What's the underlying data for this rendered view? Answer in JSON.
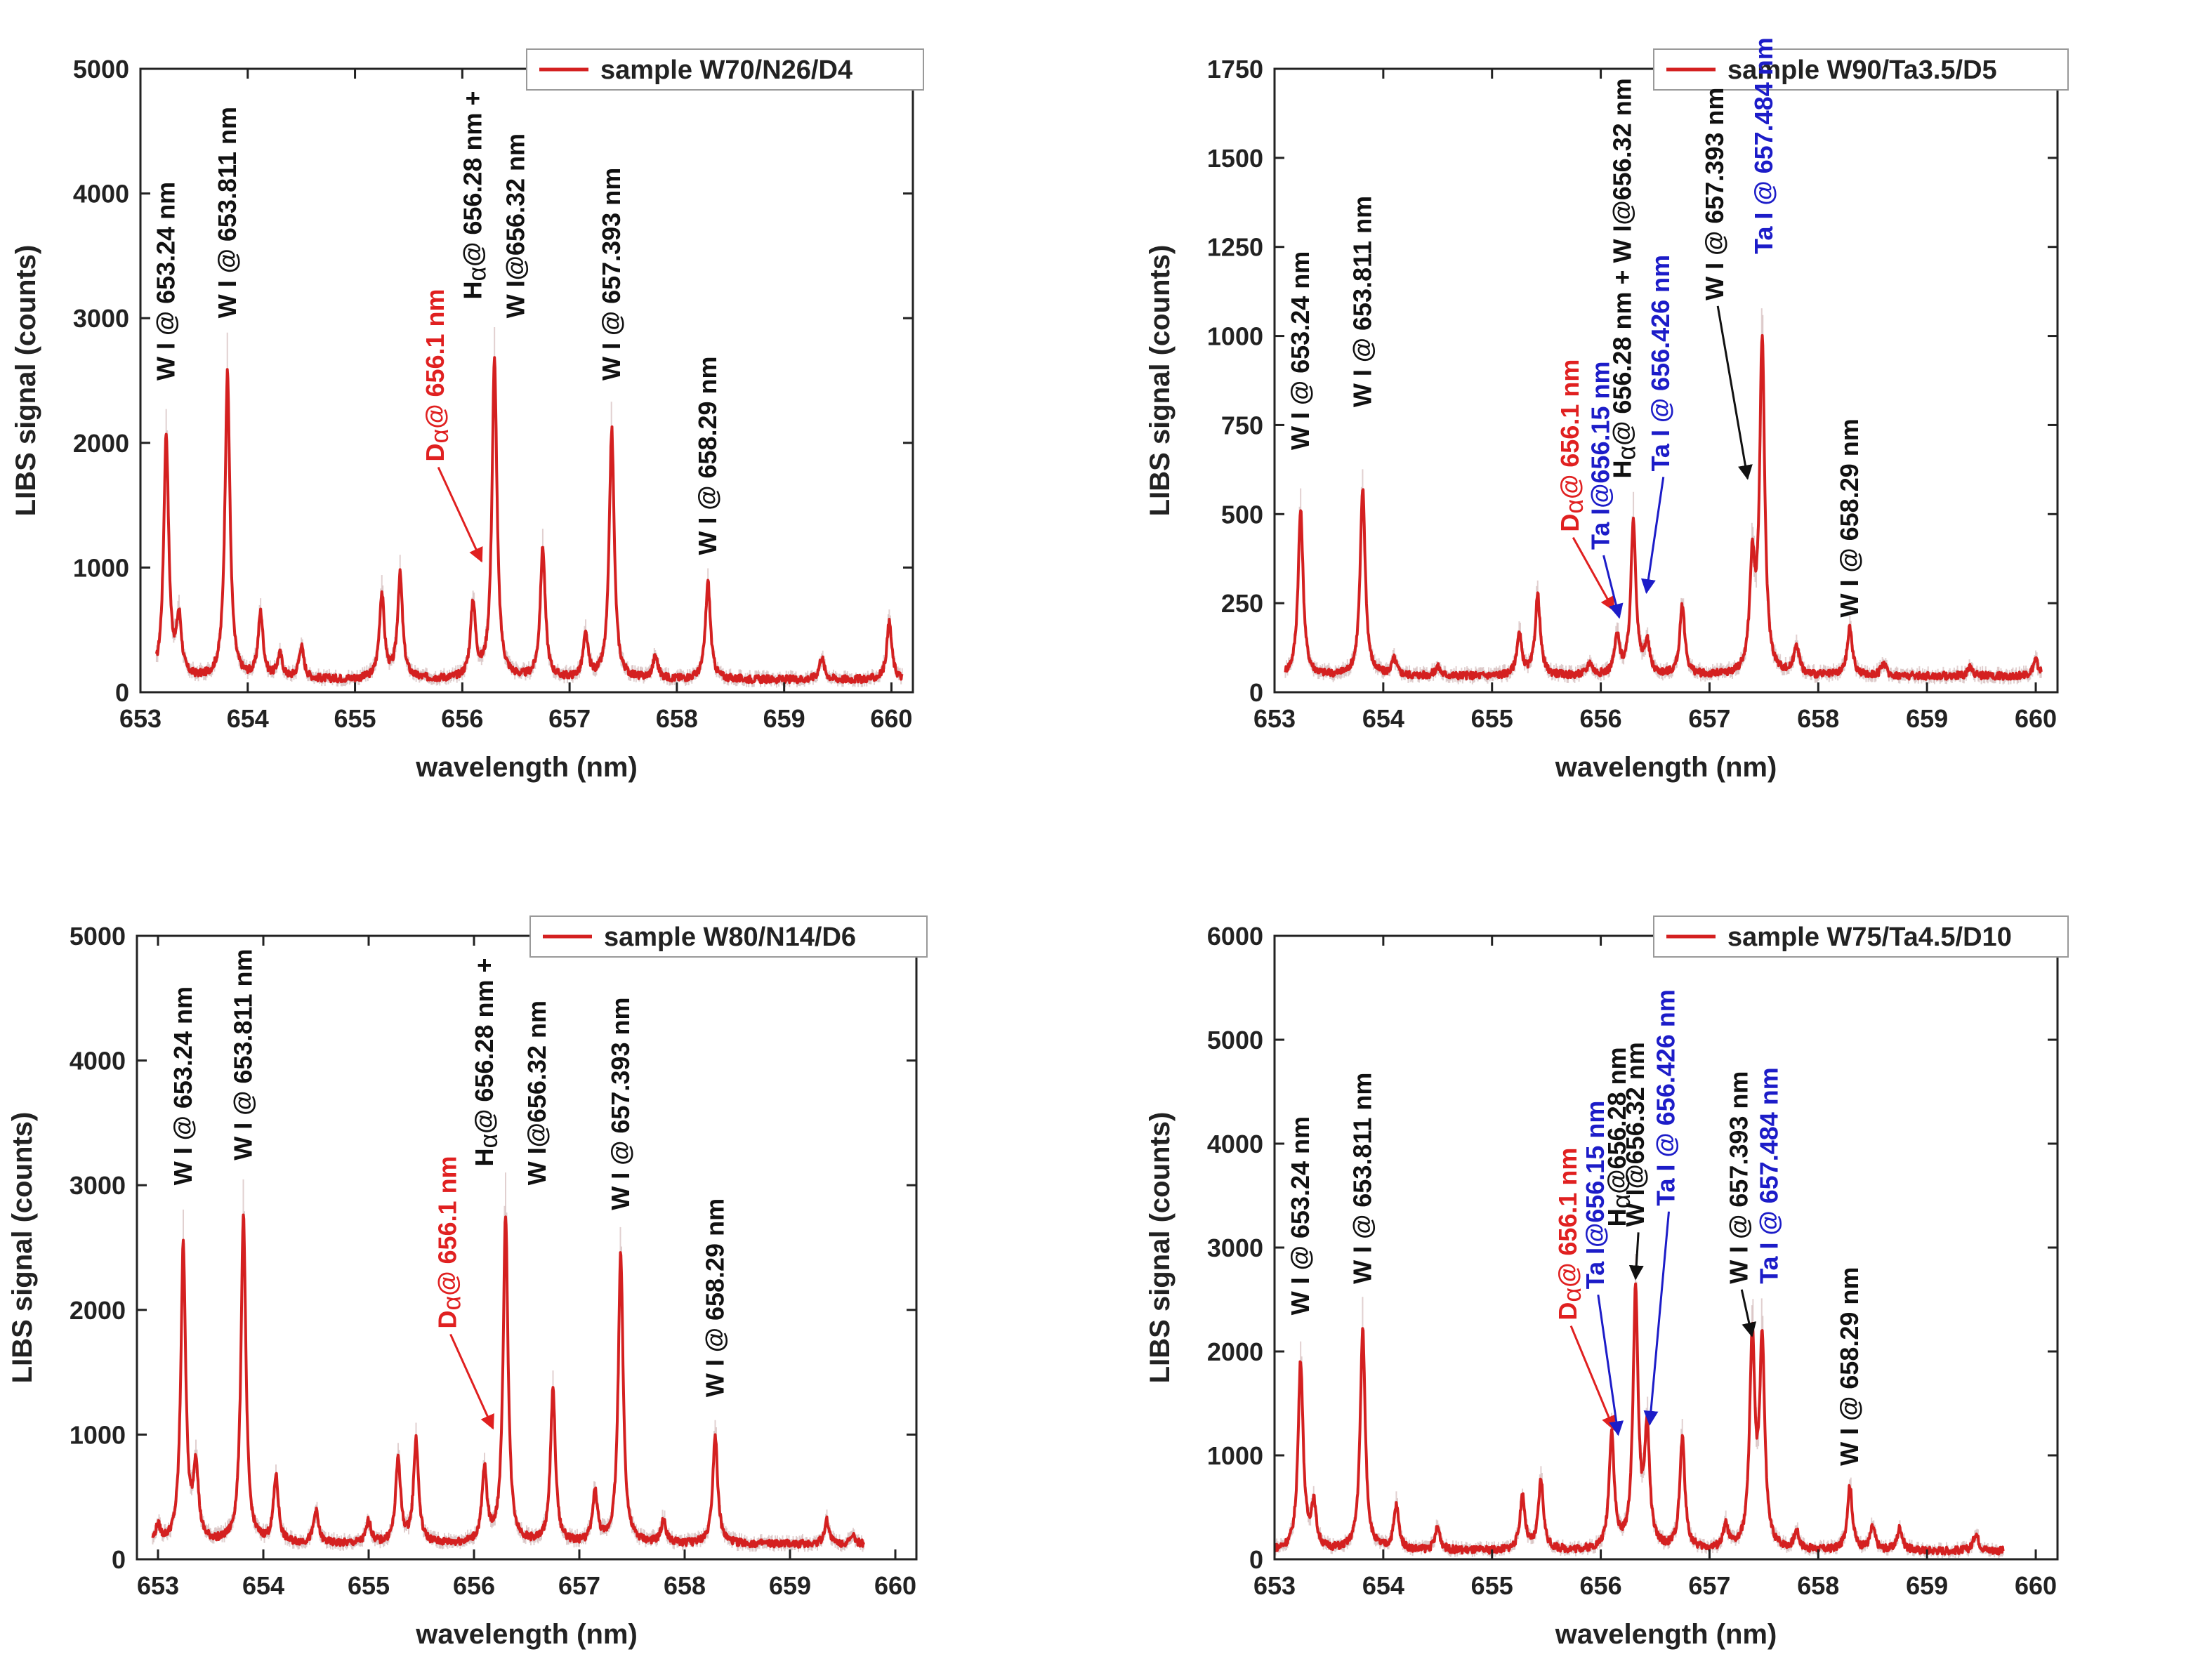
{
  "chart_data": [
    {
      "type": "line",
      "legend": "sample W70/N26/D4",
      "legend_position": "top-right",
      "xlabel": "wavelength (nm)",
      "ylabel": "LIBS signal (counts)",
      "xlim": [
        653,
        660.2
      ],
      "ylim": [
        0,
        5000
      ],
      "xticks": [
        653,
        654,
        655,
        656,
        657,
        658,
        659,
        660
      ],
      "yticks": [
        0,
        1000,
        2000,
        3000,
        4000,
        5000
      ],
      "series": [
        {
          "line_color": "#d42020",
          "baseline": 100,
          "x_range": [
            653.15,
            660.1
          ],
          "peaks": [
            {
              "x": 653.24,
              "y": 2050
            },
            {
              "x": 653.36,
              "y": 560
            },
            {
              "x": 653.811,
              "y": 2550
            },
            {
              "x": 654.12,
              "y": 620
            },
            {
              "x": 654.3,
              "y": 290
            },
            {
              "x": 654.5,
              "y": 360
            },
            {
              "x": 655.25,
              "y": 780
            },
            {
              "x": 655.42,
              "y": 930
            },
            {
              "x": 656.1,
              "y": 700
            },
            {
              "x": 656.3,
              "y": 2650
            },
            {
              "x": 656.75,
              "y": 1150
            },
            {
              "x": 657.15,
              "y": 440
            },
            {
              "x": 657.393,
              "y": 2100
            },
            {
              "x": 657.8,
              "y": 280
            },
            {
              "x": 658.29,
              "y": 880
            },
            {
              "x": 659.35,
              "y": 280
            },
            {
              "x": 659.98,
              "y": 560
            }
          ]
        }
      ],
      "annotations": [
        {
          "text": "W I @ 653.24 nm",
          "x": 653.24,
          "y": 2500,
          "color": "#111111"
        },
        {
          "text": "W I @ 653.811 nm",
          "x": 653.811,
          "y": 3000,
          "color": "#111111"
        },
        {
          "text": "Dα@ 656.1 nm",
          "x": 655.75,
          "y": 1850,
          "color": "#e02020",
          "arrow_to": [
            656.18,
            1050
          ]
        },
        {
          "text": "Hα@ 656.28 nm +",
          "x": 656.1,
          "y": 3150,
          "color": "#111111"
        },
        {
          "text": "W I@656.32 nm",
          "x": 656.5,
          "y": 3000,
          "color": "#111111"
        },
        {
          "text": "W I @ 657.393 nm",
          "x": 657.393,
          "y": 2500,
          "color": "#111111"
        },
        {
          "text": "W I @ 658.29 nm",
          "x": 658.29,
          "y": 1100,
          "color": "#111111"
        }
      ]
    },
    {
      "type": "line",
      "legend": "sample W90/Ta3.5/D5",
      "legend_position": "top-right",
      "xlabel": "wavelength (nm)",
      "ylabel": "LIBS signal (counts)",
      "xlim": [
        653,
        660.2
      ],
      "ylim": [
        0,
        1750
      ],
      "xticks": [
        653,
        654,
        655,
        656,
        657,
        658,
        659,
        660
      ],
      "yticks": [
        0,
        250,
        500,
        750,
        1000,
        1250,
        1500,
        1750
      ],
      "series": [
        {
          "line_color": "#d42020",
          "baseline": 45,
          "x_range": [
            653.1,
            660.05
          ],
          "peaks": [
            {
              "x": 653.24,
              "y": 510
            },
            {
              "x": 653.811,
              "y": 570
            },
            {
              "x": 654.1,
              "y": 90
            },
            {
              "x": 654.5,
              "y": 70
            },
            {
              "x": 655.25,
              "y": 160
            },
            {
              "x": 655.42,
              "y": 270
            },
            {
              "x": 655.9,
              "y": 80
            },
            {
              "x": 656.15,
              "y": 150
            },
            {
              "x": 656.3,
              "y": 480
            },
            {
              "x": 656.426,
              "y": 130
            },
            {
              "x": 656.75,
              "y": 240
            },
            {
              "x": 657.393,
              "y": 340
            },
            {
              "x": 657.484,
              "y": 980
            },
            {
              "x": 657.8,
              "y": 130
            },
            {
              "x": 658.29,
              "y": 180
            },
            {
              "x": 658.6,
              "y": 80
            },
            {
              "x": 659.4,
              "y": 70
            },
            {
              "x": 660.0,
              "y": 90
            }
          ]
        }
      ],
      "annotations": [
        {
          "text": "W I @ 653.24 nm",
          "x": 653.24,
          "y": 680,
          "color": "#111111"
        },
        {
          "text": "W I @ 653.811 nm",
          "x": 653.811,
          "y": 800,
          "color": "#111111"
        },
        {
          "text": "Dα@ 656.1 nm",
          "x": 655.72,
          "y": 450,
          "color": "#e02020",
          "arrow_to": [
            656.12,
            230
          ]
        },
        {
          "text": "Ta I@656.15 nm",
          "x": 656.0,
          "y": 400,
          "color": "#1c1cc8",
          "arrow_to": [
            656.17,
            210
          ]
        },
        {
          "text": "Hα@ 656.28 nm + W I@656.32 nm",
          "x": 656.2,
          "y": 600,
          "color": "#111111"
        },
        {
          "text": "Ta I @ 656.426 nm",
          "x": 656.55,
          "y": 620,
          "color": "#1c1cc8",
          "arrow_to": [
            656.42,
            280
          ]
        },
        {
          "text": "W I @ 657.393 nm",
          "x": 657.05,
          "y": 1100,
          "color": "#111111",
          "arrow_to": [
            657.35,
            600
          ]
        },
        {
          "text": "Ta I @ 657.484 nm",
          "x": 657.5,
          "y": 1230,
          "color": "#1c1cc8"
        },
        {
          "text": "W I @ 658.29 nm",
          "x": 658.29,
          "y": 210,
          "color": "#111111"
        }
      ]
    },
    {
      "type": "line",
      "legend": "sample W80/N14/D6",
      "legend_position": "top-right",
      "xlabel": "wavelength (nm)",
      "ylabel": "LIBS signal (counts)",
      "xlim": [
        652.8,
        660.2
      ],
      "ylim": [
        0,
        5000
      ],
      "xticks": [
        653,
        654,
        655,
        656,
        657,
        658,
        659,
        660
      ],
      "yticks": [
        0,
        1000,
        2000,
        3000,
        4000,
        5000
      ],
      "series": [
        {
          "line_color": "#d42020",
          "baseline": 120,
          "x_range": [
            652.95,
            659.7
          ],
          "peaks": [
            {
              "x": 653.0,
              "y": 250
            },
            {
              "x": 653.24,
              "y": 2500
            },
            {
              "x": 653.36,
              "y": 720
            },
            {
              "x": 653.811,
              "y": 2750
            },
            {
              "x": 654.12,
              "y": 650
            },
            {
              "x": 654.5,
              "y": 380
            },
            {
              "x": 655.0,
              "y": 300
            },
            {
              "x": 655.28,
              "y": 800
            },
            {
              "x": 655.45,
              "y": 950
            },
            {
              "x": 656.1,
              "y": 700
            },
            {
              "x": 656.3,
              "y": 2750
            },
            {
              "x": 656.75,
              "y": 1350
            },
            {
              "x": 657.15,
              "y": 520
            },
            {
              "x": 657.393,
              "y": 2450
            },
            {
              "x": 657.8,
              "y": 300
            },
            {
              "x": 658.29,
              "y": 1000
            },
            {
              "x": 659.35,
              "y": 310
            },
            {
              "x": 659.6,
              "y": 180
            }
          ]
        }
      ],
      "annotations": [
        {
          "text": "W I @ 653.24 nm",
          "x": 653.24,
          "y": 3000,
          "color": "#111111"
        },
        {
          "text": "W I @ 653.811 nm",
          "x": 653.811,
          "y": 3200,
          "color": "#111111"
        },
        {
          "text": "Dα@ 656.1 nm",
          "x": 655.75,
          "y": 1850,
          "color": "#e02020",
          "arrow_to": [
            656.18,
            1050
          ]
        },
        {
          "text": "Hα@ 656.28 nm +",
          "x": 656.1,
          "y": 3150,
          "color": "#111111"
        },
        {
          "text": "W I@656.32 nm",
          "x": 656.6,
          "y": 3000,
          "color": "#111111"
        },
        {
          "text": "W I @ 657.393 nm",
          "x": 657.393,
          "y": 2800,
          "color": "#111111"
        },
        {
          "text": "W I @ 658.29 nm",
          "x": 658.29,
          "y": 1300,
          "color": "#111111"
        }
      ]
    },
    {
      "type": "line",
      "legend": "sample W75/Ta4.5/D10",
      "legend_position": "top-right",
      "xlabel": "wavelength (nm)",
      "ylabel": "LIBS signal (counts)",
      "xlim": [
        653,
        660.2
      ],
      "ylim": [
        0,
        6000
      ],
      "xticks": [
        653,
        654,
        655,
        656,
        657,
        658,
        659,
        660
      ],
      "yticks": [
        0,
        1000,
        2000,
        3000,
        4000,
        5000,
        6000
      ],
      "series": [
        {
          "line_color": "#d42020",
          "baseline": 80,
          "x_range": [
            653.0,
            659.7
          ],
          "peaks": [
            {
              "x": 653.24,
              "y": 1900
            },
            {
              "x": 653.36,
              "y": 500
            },
            {
              "x": 653.811,
              "y": 2200
            },
            {
              "x": 654.12,
              "y": 500
            },
            {
              "x": 654.5,
              "y": 300
            },
            {
              "x": 655.28,
              "y": 600
            },
            {
              "x": 655.45,
              "y": 750
            },
            {
              "x": 656.1,
              "y": 1200
            },
            {
              "x": 656.32,
              "y": 2550
            },
            {
              "x": 656.426,
              "y": 1200
            },
            {
              "x": 656.75,
              "y": 1150
            },
            {
              "x": 657.15,
              "y": 300
            },
            {
              "x": 657.393,
              "y": 2100
            },
            {
              "x": 657.484,
              "y": 2050
            },
            {
              "x": 657.8,
              "y": 250
            },
            {
              "x": 658.29,
              "y": 700
            },
            {
              "x": 658.5,
              "y": 300
            },
            {
              "x": 658.75,
              "y": 300
            },
            {
              "x": 659.45,
              "y": 250
            }
          ]
        }
      ],
      "annotations": [
        {
          "text": "W I @ 653.24 nm",
          "x": 653.24,
          "y": 2350,
          "color": "#111111"
        },
        {
          "text": "W I @ 653.811 nm",
          "x": 653.811,
          "y": 2650,
          "color": "#111111"
        },
        {
          "text": "Dα@ 656.1 nm",
          "x": 655.7,
          "y": 2300,
          "color": "#e02020",
          "arrow_to": [
            656.12,
            1250
          ]
        },
        {
          "text": "Ta I@656.15 nm",
          "x": 655.95,
          "y": 2600,
          "color": "#1c1cc8",
          "arrow_to": [
            656.16,
            1200
          ]
        },
        {
          "text": "Hα@656.28 nm",
          "x": 656.15,
          "y": 3200,
          "color": "#111111"
        },
        {
          "text": "W I@656.32 nm",
          "x": 656.32,
          "y": 3200,
          "color": "#111111",
          "arrow_to": [
            656.32,
            2700
          ]
        },
        {
          "text": "Ta I @ 656.426 nm",
          "x": 656.6,
          "y": 3400,
          "color": "#1c1cc8",
          "arrow_to": [
            656.45,
            1300
          ]
        },
        {
          "text": "W I @ 657.393 nm",
          "x": 657.27,
          "y": 2650,
          "color": "#111111",
          "arrow_to": [
            657.39,
            2150
          ]
        },
        {
          "text": "Ta I @ 657.484 nm",
          "x": 657.55,
          "y": 2650,
          "color": "#1c1cc8"
        },
        {
          "text": "W I @ 658.29 nm",
          "x": 658.29,
          "y": 900,
          "color": "#111111"
        }
      ]
    }
  ]
}
